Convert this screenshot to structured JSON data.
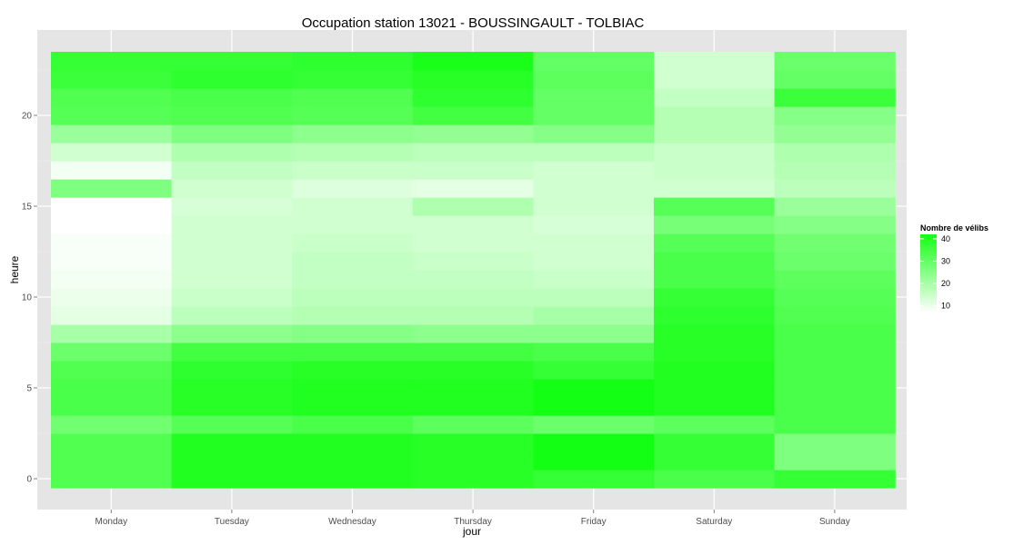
{
  "chart_data": {
    "type": "heatmap",
    "title": "Occupation station 13021 - BOUSSINGAULT - TOLBIAC",
    "xlabel": "jour",
    "ylabel": "heure",
    "categories": [
      "Monday",
      "Tuesday",
      "Wednesday",
      "Thursday",
      "Friday",
      "Saturday",
      "Sunday"
    ],
    "hours": [
      0,
      1,
      2,
      3,
      4,
      5,
      6,
      7,
      8,
      9,
      10,
      11,
      12,
      13,
      14,
      15,
      16,
      17,
      18,
      19,
      20,
      21,
      22,
      23
    ],
    "yticks": [
      0,
      5,
      10,
      15,
      20
    ],
    "ylim": [
      -0.5,
      23.5
    ],
    "grid": true,
    "legend": {
      "title": "Nombre de vélibs",
      "ticks": [
        10,
        20,
        30,
        40
      ],
      "range": [
        7,
        42
      ],
      "low_color": "#ffffff",
      "high_color": "#13ff13",
      "position": "right"
    },
    "values": [
      [
        33,
        40,
        40,
        39,
        37,
        34,
        37
      ],
      [
        33,
        40,
        40,
        39,
        43,
        37,
        26
      ],
      [
        33,
        40,
        40,
        39,
        44,
        37,
        26
      ],
      [
        28,
        32,
        34,
        31,
        29,
        31,
        34
      ],
      [
        34,
        39,
        40,
        40,
        42,
        40,
        34
      ],
      [
        34,
        39,
        40,
        40,
        42,
        40,
        34
      ],
      [
        33,
        38,
        39,
        39,
        37,
        40,
        34
      ],
      [
        29,
        35,
        35,
        35,
        34,
        39,
        34
      ],
      [
        20,
        24,
        25,
        24,
        24,
        39,
        34
      ],
      [
        11,
        17,
        18,
        18,
        20,
        38,
        33
      ],
      [
        10,
        15,
        17,
        17,
        17,
        37,
        32
      ],
      [
        9,
        14,
        16,
        16,
        15,
        34,
        31
      ],
      [
        8,
        14,
        16,
        15,
        14,
        34,
        29
      ],
      [
        8,
        14,
        15,
        14,
        14,
        32,
        28
      ],
      [
        7,
        14,
        14,
        14,
        13,
        27,
        25
      ],
      [
        7,
        13,
        14,
        19,
        14,
        32,
        22
      ],
      [
        26,
        14,
        12,
        11,
        14,
        14,
        17
      ],
      [
        9,
        16,
        15,
        15,
        14,
        15,
        18
      ],
      [
        14,
        19,
        18,
        17,
        17,
        15,
        19
      ],
      [
        22,
        26,
        24,
        23,
        25,
        18,
        23
      ],
      [
        32,
        33,
        32,
        35,
        30,
        18,
        25
      ],
      [
        33,
        34,
        33,
        38,
        30,
        16,
        36
      ],
      [
        36,
        38,
        37,
        39,
        31,
        14,
        30
      ],
      [
        37,
        37,
        38,
        41,
        30,
        14,
        29
      ]
    ]
  }
}
